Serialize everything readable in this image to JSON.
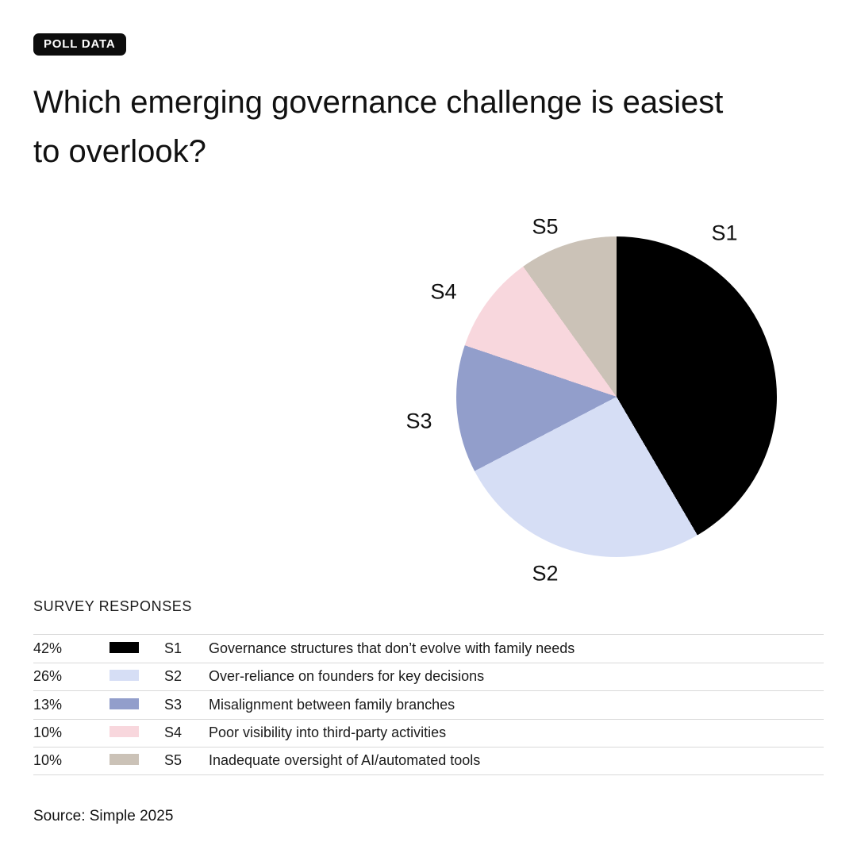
{
  "badge_label": "POLL DATA",
  "title": "Which emerging governance challenge is easiest to overlook?",
  "section_header": "SURVEY RESPONSES",
  "source": "Source: Simple 2025",
  "chart_data": {
    "type": "pie",
    "title": "Which emerging governance challenge is easiest to overlook?",
    "labels": [
      "S1",
      "S2",
      "S3",
      "S4",
      "S5"
    ],
    "values_pct": [
      42,
      26,
      13,
      10,
      10
    ],
    "colors": [
      "#000000",
      "#d6def5",
      "#929ecb",
      "#f8d7dd",
      "#cbc2b7"
    ],
    "start_angle": "12 o'clock",
    "direction": "clockwise",
    "legend_position": "table below chart"
  },
  "table": {
    "rows": [
      {
        "pct": "42%",
        "color": "#000000",
        "label": "S1",
        "description": "Governance structures that don’t evolve with family needs"
      },
      {
        "pct": "26%",
        "color": "#d6def5",
        "label": "S2",
        "description": "Over-reliance on founders for key decisions"
      },
      {
        "pct": "13%",
        "color": "#929ecb",
        "label": "S3",
        "description": "Misalignment between family branches"
      },
      {
        "pct": "10%",
        "color": "#f8d7dd",
        "label": "S4",
        "description": "Poor visibility into third-party activities"
      },
      {
        "pct": "10%",
        "color": "#cbc2b7",
        "label": "S5",
        "description": "Inadequate oversight of AI/automated tools"
      }
    ]
  }
}
